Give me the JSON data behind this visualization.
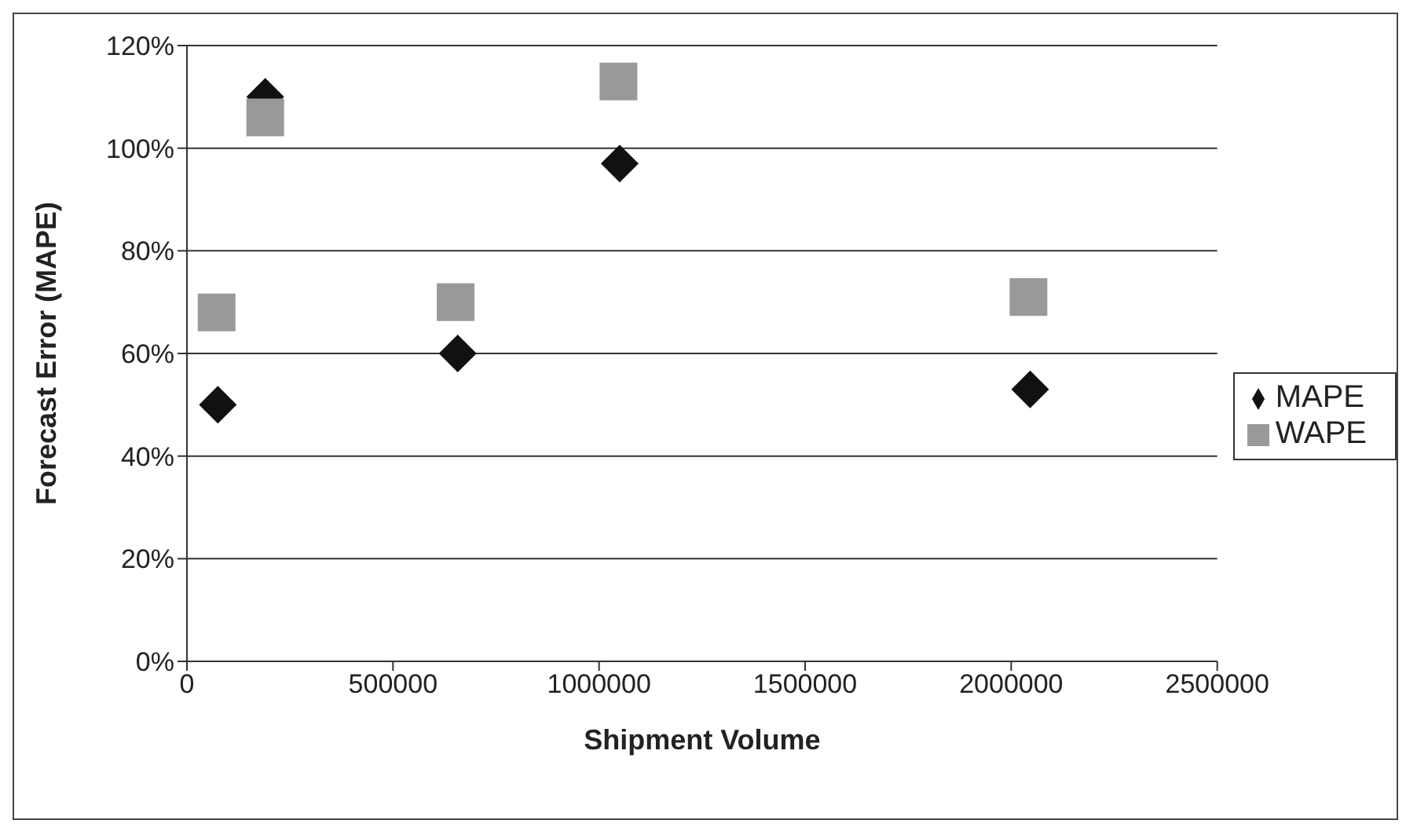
{
  "chart_data": {
    "type": "scatter",
    "xlabel": "Shipment Volume",
    "ylabel": "Forecast Error (MAPE)",
    "xlim": [
      0,
      2500000
    ],
    "xticks": [
      0,
      500000,
      1000000,
      1500000,
      2000000,
      2500000
    ],
    "ylim": [
      0,
      120
    ],
    "yticks": [
      {
        "value": 0,
        "label": "0%"
      },
      {
        "value": 20,
        "label": "20%"
      },
      {
        "value": 40,
        "label": "40%"
      },
      {
        "value": 60,
        "label": "60%"
      },
      {
        "value": 80,
        "label": "80%"
      },
      {
        "value": 100,
        "label": "100%"
      },
      {
        "value": 120,
        "label": "120%"
      }
    ],
    "grid": "y",
    "legend": "right",
    "series": [
      {
        "name": "MAPE",
        "color": "#111111",
        "marker": "diamond",
        "x": [
          75000,
          190000,
          657000,
          1050000,
          2046000
        ],
        "values": [
          50,
          110,
          60,
          97,
          53
        ]
      },
      {
        "name": "WAPE",
        "color": "#999999",
        "marker": "square",
        "x": [
          72000,
          190000,
          652000,
          1047000,
          2042000
        ],
        "values": [
          68,
          106,
          70,
          113,
          71
        ]
      }
    ]
  }
}
